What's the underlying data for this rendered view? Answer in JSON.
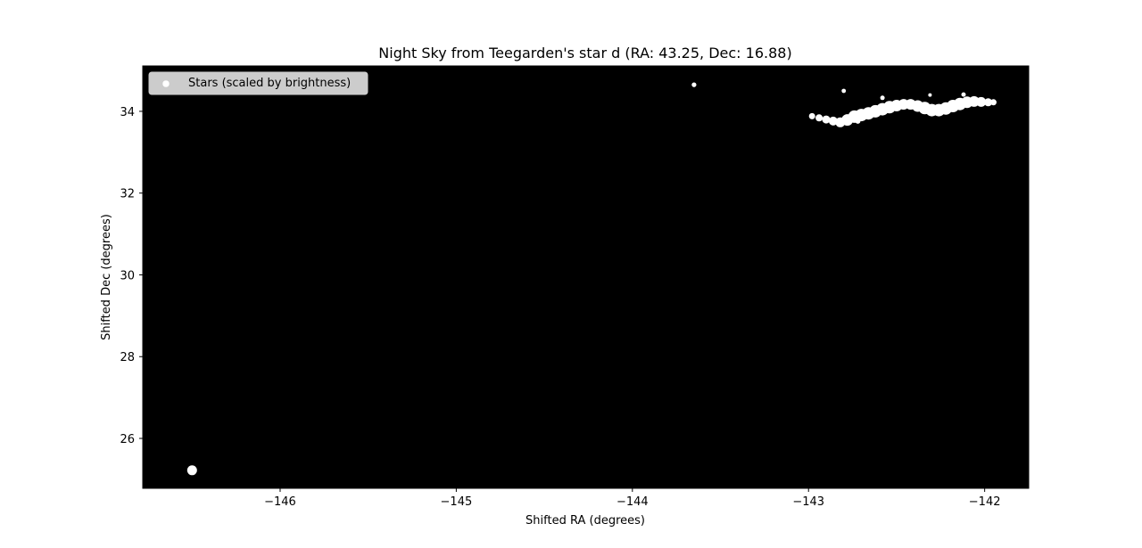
{
  "chart_data": {
    "type": "scatter",
    "title": "Night Sky from Teegarden's star d (RA: 43.25, Dec: 16.88)",
    "xlabel": "Shifted RA (degrees)",
    "ylabel": "Shifted Dec (degrees)",
    "xlim": [
      -146.78,
      -141.75
    ],
    "ylim": [
      24.78,
      35.11
    ],
    "xticks": [
      -146,
      -145,
      -144,
      -143,
      -142
    ],
    "xtick_labels": [
      "−146",
      "−145",
      "−144",
      "−143",
      "−142"
    ],
    "yticks": [
      26,
      28,
      30,
      32,
      34
    ],
    "ytick_labels": [
      "26",
      "28",
      "30",
      "32",
      "34"
    ],
    "grid": false,
    "background_color": "#000000",
    "marker_color": "#ffffff",
    "legend": {
      "placement": "upper-left",
      "entries": [
        "Stars (scaled by brightness)"
      ]
    },
    "series": [
      {
        "name": "Stars (scaled by brightness)",
        "points": [
          {
            "x": -146.5,
            "y": 25.22,
            "size": 5.5
          },
          {
            "x": -143.65,
            "y": 34.65,
            "size": 2.6
          },
          {
            "x": -142.8,
            "y": 34.5,
            "size": 2.4
          },
          {
            "x": -142.98,
            "y": 33.88,
            "size": 3.5
          },
          {
            "x": -142.94,
            "y": 33.84,
            "size": 4.0
          },
          {
            "x": -142.9,
            "y": 33.8,
            "size": 4.5
          },
          {
            "x": -142.86,
            "y": 33.76,
            "size": 5.0
          },
          {
            "x": -142.82,
            "y": 33.73,
            "size": 5.5
          },
          {
            "x": -142.78,
            "y": 33.79,
            "size": 6.5
          },
          {
            "x": -142.74,
            "y": 33.87,
            "size": 7.0
          },
          {
            "x": -142.7,
            "y": 33.91,
            "size": 7.0
          },
          {
            "x": -142.66,
            "y": 33.95,
            "size": 7.0
          },
          {
            "x": -142.62,
            "y": 34.0,
            "size": 7.0
          },
          {
            "x": -142.58,
            "y": 34.05,
            "size": 7.0
          },
          {
            "x": -142.54,
            "y": 34.1,
            "size": 7.0
          },
          {
            "x": -142.5,
            "y": 34.14,
            "size": 6.5
          },
          {
            "x": -142.46,
            "y": 34.17,
            "size": 6.0
          },
          {
            "x": -142.42,
            "y": 34.17,
            "size": 6.0
          },
          {
            "x": -142.38,
            "y": 34.13,
            "size": 6.5
          },
          {
            "x": -142.34,
            "y": 34.08,
            "size": 7.0
          },
          {
            "x": -142.3,
            "y": 34.03,
            "size": 7.0
          },
          {
            "x": -142.26,
            "y": 34.03,
            "size": 7.0
          },
          {
            "x": -142.22,
            "y": 34.07,
            "size": 7.0
          },
          {
            "x": -142.18,
            "y": 34.13,
            "size": 7.0
          },
          {
            "x": -142.14,
            "y": 34.18,
            "size": 7.0
          },
          {
            "x": -142.1,
            "y": 34.22,
            "size": 6.5
          },
          {
            "x": -142.06,
            "y": 34.24,
            "size": 6.0
          },
          {
            "x": -142.02,
            "y": 34.23,
            "size": 5.5
          },
          {
            "x": -141.98,
            "y": 34.22,
            "size": 4.5
          },
          {
            "x": -141.95,
            "y": 34.22,
            "size": 3.5
          },
          {
            "x": -142.31,
            "y": 34.4,
            "size": 2.0
          },
          {
            "x": -142.58,
            "y": 34.33,
            "size": 2.5
          },
          {
            "x": -142.12,
            "y": 34.41,
            "size": 2.5
          },
          {
            "x": -142.72,
            "y": 33.76,
            "size": 3.0
          }
        ]
      }
    ]
  }
}
